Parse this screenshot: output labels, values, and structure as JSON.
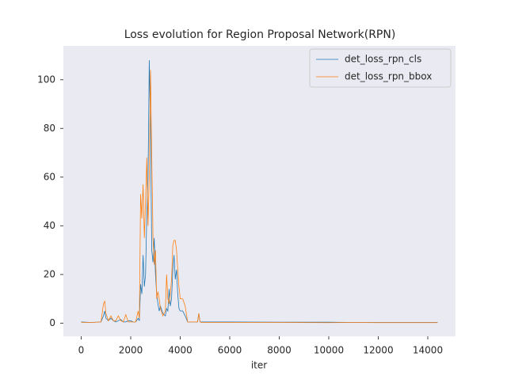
{
  "chart_data": {
    "type": "line",
    "title": "Loss evolution for Region Proposal Network(RPN)",
    "x_label": "iter",
    "x": [
      0,
      400,
      800,
      900,
      950,
      1000,
      1100,
      1200,
      1300,
      1400,
      1500,
      1600,
      1700,
      1800,
      1900,
      2000,
      2100,
      2200,
      2300,
      2350,
      2400,
      2450,
      2500,
      2550,
      2600,
      2650,
      2700,
      2750,
      2800,
      2850,
      2900,
      2950,
      3000,
      3050,
      3100,
      3150,
      3200,
      3300,
      3400,
      3450,
      3500,
      3550,
      3600,
      3650,
      3700,
      3750,
      3800,
      3850,
      3900,
      3950,
      4000,
      4100,
      4200,
      4300,
      4400,
      4500,
      4600,
      4700,
      4750,
      4800,
      4850,
      5000,
      6000,
      8000,
      10000,
      11000,
      12000,
      13000,
      14000,
      14400
    ],
    "series": [
      {
        "name": "det_loss_rpn_cls",
        "color": "#1f77b4",
        "values": [
          0.5,
          0.3,
          0.5,
          3,
          5,
          2,
          1,
          2,
          1,
          0.5,
          1,
          1.5,
          0.5,
          0.5,
          1,
          1,
          0.5,
          0.5,
          2,
          1,
          16,
          12,
          28,
          15,
          20,
          45,
          60,
          108,
          80,
          30,
          25,
          35,
          20,
          12,
          8,
          5,
          7,
          4,
          3,
          6,
          5,
          14,
          7,
          10,
          22,
          28,
          18,
          22,
          12,
          6,
          5,
          5,
          3,
          0.5,
          0.5,
          0.5,
          0.5,
          0.5,
          4,
          0.5,
          0.5,
          0.5,
          0.5,
          0.4,
          0.4,
          0.3,
          0.3,
          0.3,
          0.3,
          0.3
        ]
      },
      {
        "name": "det_loss_rpn_bbox",
        "color": "#ff7f0e",
        "values": [
          0.3,
          0.3,
          0.5,
          8,
          9,
          4,
          1,
          3,
          1,
          1,
          3,
          1,
          0.5,
          3.5,
          0.5,
          0.5,
          0.5,
          0.5,
          5,
          2,
          53,
          43,
          57,
          35,
          50,
          68,
          40,
          60,
          104,
          70,
          35,
          24,
          30,
          10,
          13,
          10,
          6,
          3,
          5,
          20,
          10,
          8,
          12,
          18,
          32,
          34,
          34,
          30,
          22,
          15,
          10,
          10,
          7,
          0.5,
          0.5,
          0.5,
          0.5,
          0.5,
          4,
          0.5,
          0.3,
          0.3,
          0.3,
          0.3,
          0.2,
          0.3,
          0.2,
          0.2,
          0.2,
          0.2
        ]
      }
    ],
    "xlim": [
      -720,
      15120
    ],
    "ylim": [
      -5.4,
      113.9
    ],
    "xticks": [
      0,
      2000,
      4000,
      6000,
      8000,
      10000,
      12000,
      14000
    ],
    "yticks": [
      0,
      20,
      40,
      60,
      80,
      100
    ],
    "grid": false,
    "legend": "upper right"
  }
}
